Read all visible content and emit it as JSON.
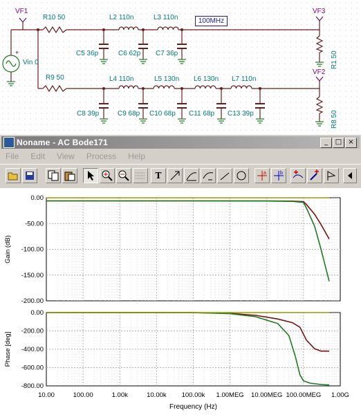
{
  "schematic": {
    "vf1": "VF1",
    "vf2": "VF2",
    "vf3": "VF3",
    "source": "Vin",
    "source_value": "0",
    "r10": "R10 50",
    "r9": "R9 50",
    "r1": "R1 50",
    "r8": "R8 50",
    "l2": "L2 110n",
    "l3": "L3 110n",
    "l4": "L4 110n",
    "l5": "L5 130n",
    "l6": "L6 130n",
    "l7": "L7 110n",
    "c5": "C5 36p",
    "c6": "C6 62p",
    "c7": "C7 36p",
    "c8": "C8 39p",
    "c9": "C9 68p",
    "c10": "C10 68p",
    "c11": "C11 68p",
    "c13": "C13 39p",
    "freq_box": "100MHz"
  },
  "window": {
    "title": "Noname - AC Bode171",
    "controls": [
      "_",
      "□",
      "×"
    ]
  },
  "menu": [
    "File",
    "Edit",
    "View",
    "Process",
    "Help"
  ],
  "toolbar": {
    "buttons": [
      "open-icon",
      "save-icon",
      "copy-icon",
      "paste-icon",
      "pointer-icon",
      "zoom-in-icon",
      "zoom-out-icon",
      "grid-icon",
      "text-icon",
      "cursor-tool-icon",
      "slope-tool-icon",
      "curve-tool-icon",
      "lines-icon",
      "line-icon",
      "circle-icon",
      "cursor-a-icon",
      "cursor-b-icon",
      "add-marker-icon",
      "pen-icon",
      "flag-icon",
      "scroll-left-icon"
    ]
  },
  "chart_data": [
    {
      "type": "line",
      "ylabel": "Gain (dB)",
      "xlabel": "",
      "x_scale": "log",
      "xlim": [
        10,
        1000000000
      ],
      "ylim": [
        -200,
        0
      ],
      "y_ticks": [
        "0.00",
        "-50.00",
        "-100.00",
        "-150.00",
        "-200.00"
      ],
      "grid": true,
      "series": [
        {
          "color": "#7a1010",
          "x": [
            10,
            1000,
            100000,
            10000000,
            50000000,
            100000000,
            120000000,
            200000000,
            300000000,
            500000000
          ],
          "y": [
            -6.0,
            -6.0,
            -6.0,
            -6.1,
            -6.5,
            -7.5,
            -13,
            -32,
            -52,
            -80
          ]
        },
        {
          "color": "#1e7a1e",
          "x": [
            10,
            1000,
            100000,
            10000000,
            50000000,
            100000000,
            120000000,
            200000000,
            300000000,
            500000000
          ],
          "y": [
            -6.0,
            -6.0,
            -6.0,
            -6.3,
            -7.0,
            -9,
            -20,
            -55,
            -100,
            -162
          ]
        },
        {
          "color": "#9a9a00",
          "x": [
            10,
            500000000
          ],
          "y": [
            0,
            0
          ]
        }
      ]
    },
    {
      "type": "line",
      "ylabel": "Phase [deg]",
      "xlabel": "Frequency (Hz)",
      "x_scale": "log",
      "xlim": [
        10,
        1000000000
      ],
      "ylim": [
        -800,
        0
      ],
      "y_ticks": [
        "0.00",
        "-200.00",
        "-400.00",
        "-600.00",
        "-800.00"
      ],
      "x_ticks": [
        "10.00",
        "100.00",
        "1.00k",
        "10.00k",
        "100.00k",
        "1.00MEG",
        "10.00MEG",
        "100.00MEG",
        "1.00G"
      ],
      "grid": true,
      "series": [
        {
          "color": "#7a1010",
          "x": [
            10,
            100000,
            1000000,
            5000000,
            20000000,
            50000000,
            80000000,
            120000000,
            200000000,
            300000000,
            500000000
          ],
          "y": [
            0,
            -1,
            -8,
            -30,
            -70,
            -110,
            -160,
            -300,
            -395,
            -420,
            -420
          ]
        },
        {
          "color": "#1e7a1e",
          "x": [
            10,
            100000,
            1000000,
            5000000,
            20000000,
            40000000,
            60000000,
            80000000,
            100000000,
            150000000,
            300000000,
            500000000
          ],
          "y": [
            0,
            -1,
            -12,
            -45,
            -120,
            -250,
            -480,
            -680,
            -745,
            -770,
            -785,
            -790
          ]
        },
        {
          "color": "#9a9a00",
          "x": [
            10,
            500000000
          ],
          "y": [
            0,
            0
          ]
        }
      ]
    }
  ]
}
